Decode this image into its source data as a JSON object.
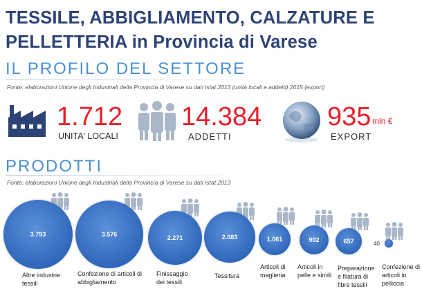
{
  "header": {
    "title_line1": "TESSILE, ABBIGLIAMENTO, CALZATURE E",
    "title_line2": "PELLETTERIA in Provincia di Varese"
  },
  "profile": {
    "heading": "IL PROFILO DEL SETTORE",
    "source": "Fonte: elaborazioni Unione degli Industriali della Provincia di Varese su dati Istat 2013 (unità locali e addetti) 2015 (export)",
    "stats": [
      {
        "value": "1.712",
        "label": "UNITA' LOCALI",
        "icon": "factory-icon"
      },
      {
        "value": "14.384",
        "label": "ADDETTI",
        "icon": "people-icon"
      },
      {
        "value": "935",
        "unit": "mln €",
        "label": "EXPORT",
        "icon": "globe-icon"
      }
    ]
  },
  "products": {
    "heading": "PRODOTTI",
    "source": "Fonte: elaborazioni Unione degli Industriali della Provincia di Varese su dati Istat 2013",
    "items": [
      {
        "value": "3.793",
        "label": "Altre industrie tessili"
      },
      {
        "value": "3.576",
        "label": "Confezione di articoli di abbigliamento"
      },
      {
        "value": "2.271",
        "label": "Finissaggio dei tessili"
      },
      {
        "value": "2.083",
        "label": "Tessitura"
      },
      {
        "value": "1.061",
        "label": "Articoli di maglieria"
      },
      {
        "value": "902",
        "label": "Articoli in pelle e simili"
      },
      {
        "value": "657",
        "label": "Preparazione e filatura di fibre tessili"
      },
      {
        "value": "40",
        "label": "Confezione di articoli in pelliccia"
      }
    ]
  },
  "colors": {
    "title": "#2d4375",
    "section": "#4b90cf",
    "number": "#e8202a",
    "circle": "#3a72c4",
    "icon": "#a9b7c9"
  }
}
